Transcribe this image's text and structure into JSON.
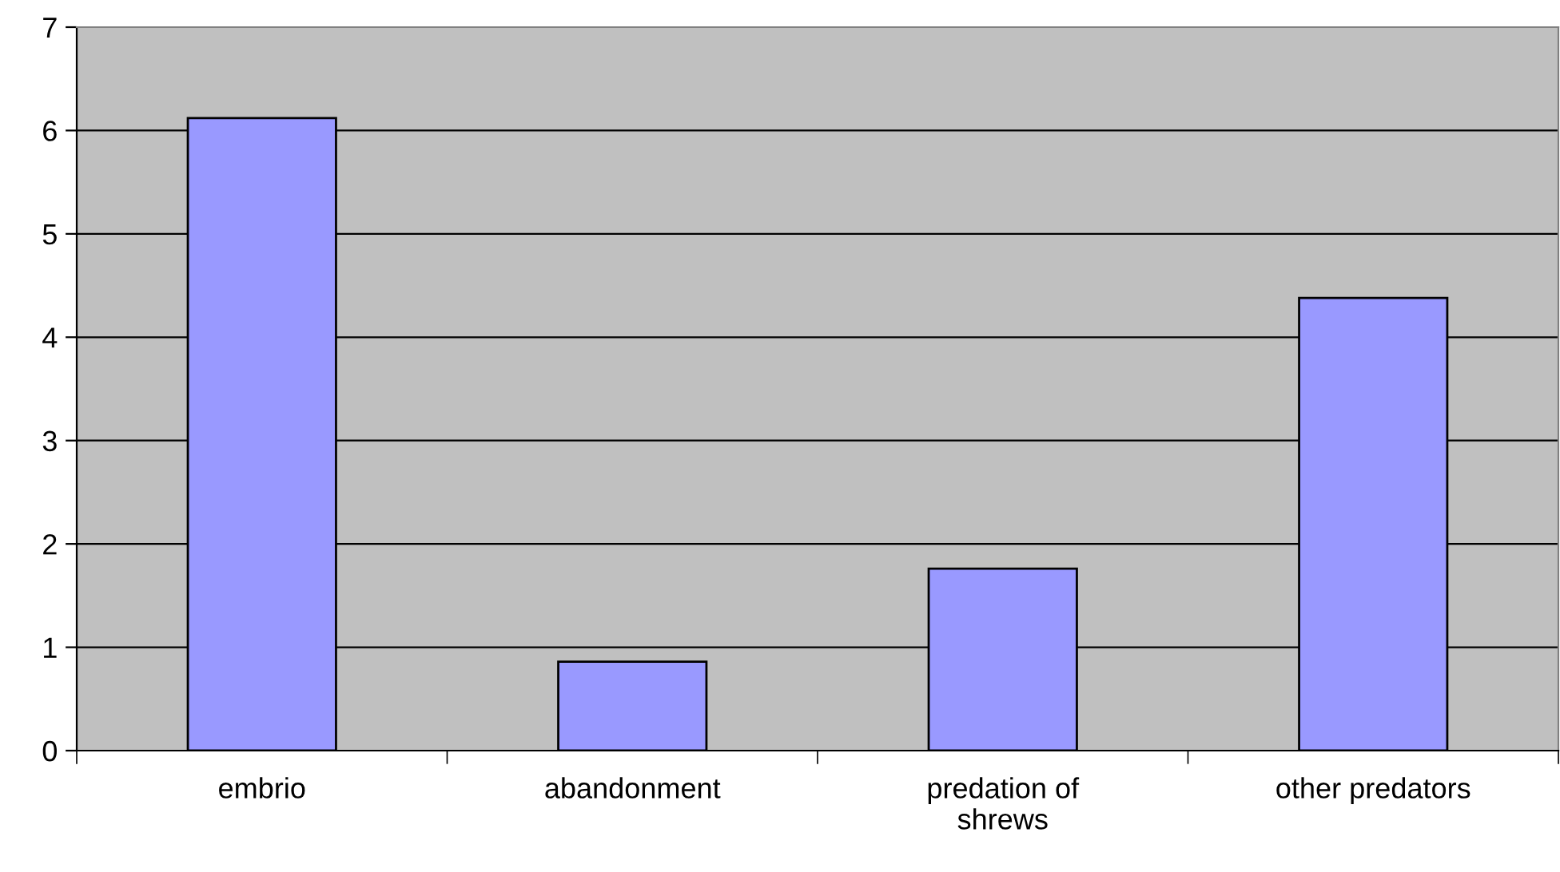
{
  "chart_data": {
    "type": "bar",
    "categories": [
      "embrio",
      "abandonment",
      "predation of shrews",
      "other predators"
    ],
    "values": [
      6.12,
      0.86,
      1.76,
      4.38
    ],
    "color": "#9999ff",
    "ylim": [
      0,
      7
    ],
    "yticks": [
      0,
      1,
      2,
      3,
      4,
      5,
      6,
      7
    ],
    "grid": "y"
  }
}
